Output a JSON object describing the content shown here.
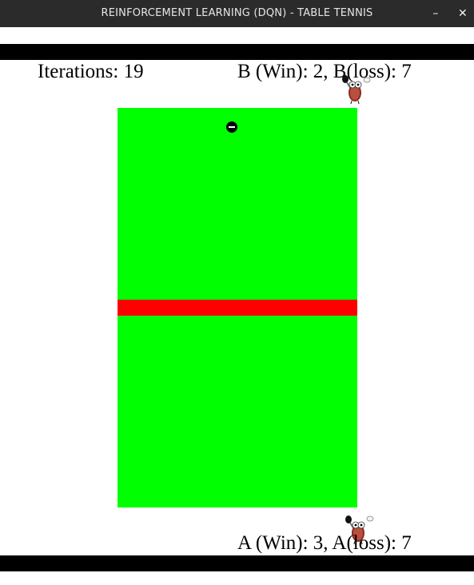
{
  "window": {
    "title": "REINFORCEMENT LEARNING (DQN) - TABLE TENNIS",
    "minimize_glyph": "–",
    "close_glyph": "✕"
  },
  "hud": {
    "iterations": "Iterations: 19",
    "player_b_stats": "B (Win): 2, B(loss): 7",
    "player_a_stats": "A (Win): 3, A(loss): 7"
  },
  "colors": {
    "table": "#00ff00",
    "net": "#ff0000",
    "bars": "#000000",
    "ball": "#000000"
  },
  "sprites": {
    "player_b": "player-b-robot-with-paddle-icon",
    "player_a": "player-a-robot-with-paddle-icon",
    "ball": "ball-icon"
  }
}
